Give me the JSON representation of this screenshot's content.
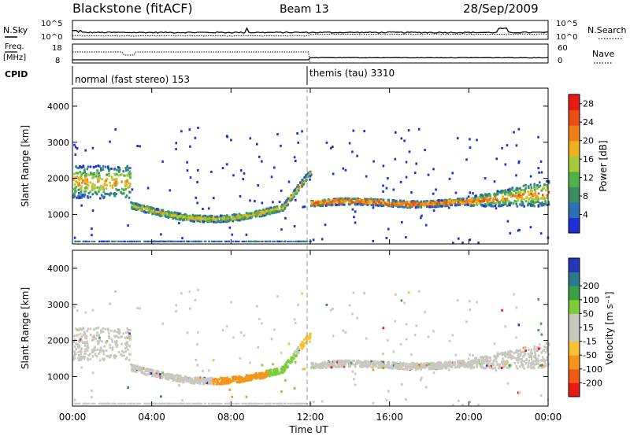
{
  "header": {
    "title": "Blackstone (fitACF)",
    "beam": "Beam 13",
    "date": "28/Sep/2009"
  },
  "summary": {
    "nsky_label": "N.Sky",
    "nsearch_label": "N.Search",
    "nsky_ticks": [
      "10^5",
      "10^0"
    ],
    "nsearch_ticks": [
      "10^5",
      "10^0"
    ],
    "freq_label": "Freq.",
    "freq_unit": "[MHz]",
    "freq_ticks": [
      "18",
      "8"
    ],
    "nave_label": "Nave",
    "nave_ticks": [
      "60",
      "0"
    ],
    "cpid_label": "CPID",
    "cpid_segments": [
      "normal (fast stereo) 153",
      "themis (tau) 3310"
    ]
  },
  "colors": {
    "power": [
      "#1e2fd8",
      "#2b6fb5",
      "#3a8f62",
      "#52b24a",
      "#a8c93a",
      "#f0b11c",
      "#f07f17",
      "#e84f14",
      "#e81b12"
    ],
    "velocity": [
      "#e81b12",
      "#f05a14",
      "#f5951a",
      "#f7c233",
      "#c8c8c0",
      "#c8c8c0",
      "#7ccc3c",
      "#3a9f45",
      "#2b7a8c",
      "#2337b8"
    ]
  },
  "chart_data": [
    {
      "type": "heatmap",
      "name": "power",
      "ylabel": "Slant Range [km]",
      "ylim": [
        180,
        4500
      ],
      "yticks": [
        "1000",
        "2000",
        "3000",
        "4000"
      ],
      "xlim": [
        0,
        24
      ],
      "colorbar_label": "Power [dB]",
      "colorbar_ticks": [
        "4",
        "8",
        "12",
        "16",
        "20",
        "24",
        "28"
      ],
      "colorbar_range": [
        0,
        30
      ]
    },
    {
      "type": "heatmap",
      "name": "velocity",
      "ylabel": "Slant Range [km]",
      "ylim": [
        180,
        4500
      ],
      "yticks": [
        "1000",
        "2000",
        "3000",
        "4000"
      ],
      "xlim": [
        0,
        24
      ],
      "colorbar_label": "Velocity [m s⁻¹]",
      "colorbar_ticks": [
        "-200",
        "-100",
        "-50",
        "-15",
        "15",
        "50",
        "100",
        "200"
      ]
    }
  ],
  "xaxis": {
    "label": "Time UT",
    "ticks": [
      "00:00",
      "04:00",
      "08:00",
      "12:00",
      "16:00",
      "20:00",
      "00:00"
    ]
  }
}
